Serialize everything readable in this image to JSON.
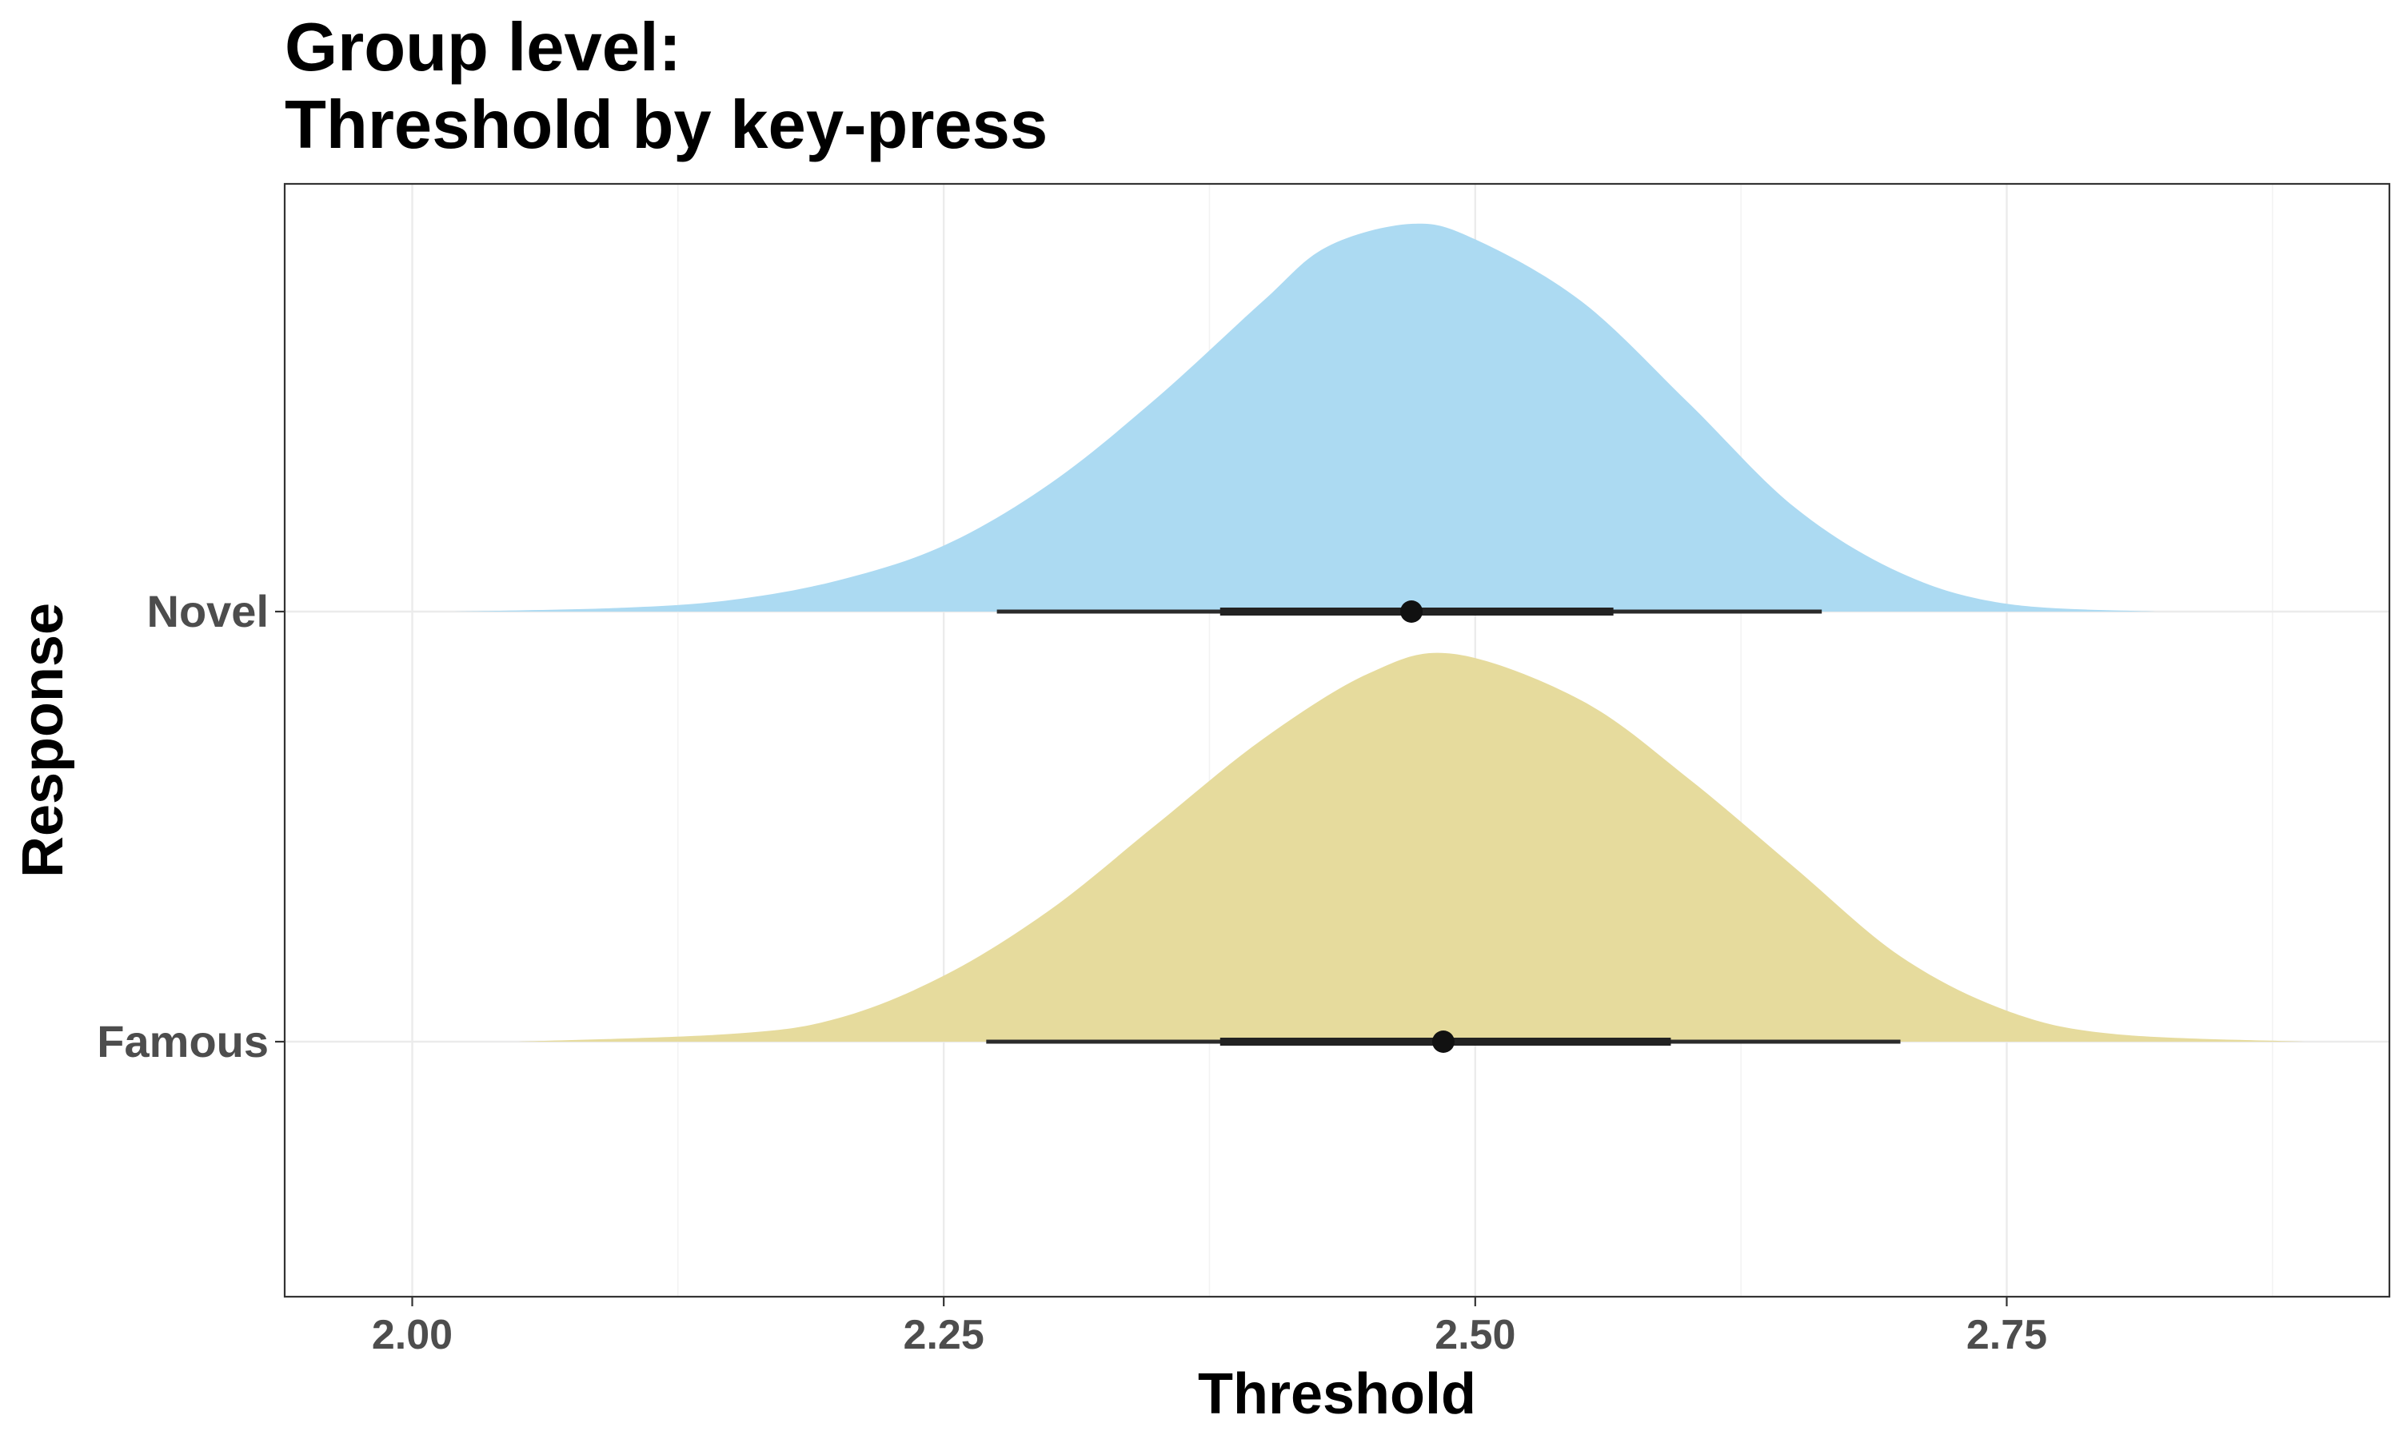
{
  "chart_data": {
    "type": "area",
    "subtype": "halfeye",
    "title_lines": [
      "Group level:",
      "Threshold by key-press"
    ],
    "xlabel": "Threshold",
    "ylabel": "Response",
    "xlim": [
      1.94,
      2.93
    ],
    "xticks": [
      2.0,
      2.25,
      2.5,
      2.75
    ],
    "xtick_labels": [
      "2.00",
      "2.25",
      "2.50",
      "2.75"
    ],
    "grid": true,
    "categories": [
      "Novel",
      "Famous"
    ],
    "series": [
      {
        "name": "Novel",
        "color": "#ACDAF2",
        "point": 2.47,
        "interval_66": [
          2.38,
          2.565
        ],
        "interval_95": [
          2.275,
          2.663
        ],
        "density": {
          "x": [
            2.02,
            2.1,
            2.15,
            2.2,
            2.25,
            2.3,
            2.35,
            2.4,
            2.43,
            2.47,
            2.5,
            2.55,
            2.6,
            2.65,
            2.7,
            2.75,
            2.82
          ],
          "density": [
            0.0,
            0.01,
            0.03,
            0.08,
            0.17,
            0.33,
            0.55,
            0.8,
            0.94,
            1.0,
            0.96,
            0.8,
            0.54,
            0.27,
            0.1,
            0.02,
            0.0
          ]
        }
      },
      {
        "name": "Famous",
        "color": "#E6DB9D",
        "point": 2.485,
        "interval_66": [
          2.38,
          2.592
        ],
        "interval_95": [
          2.27,
          2.7
        ],
        "density": {
          "x": [
            2.05,
            2.15,
            2.2,
            2.25,
            2.3,
            2.35,
            2.4,
            2.45,
            2.49,
            2.55,
            2.6,
            2.65,
            2.7,
            2.75,
            2.8,
            2.89
          ],
          "density": [
            0.0,
            0.02,
            0.06,
            0.17,
            0.34,
            0.56,
            0.78,
            0.95,
            1.0,
            0.88,
            0.68,
            0.45,
            0.22,
            0.08,
            0.02,
            0.0
          ]
        }
      }
    ]
  }
}
